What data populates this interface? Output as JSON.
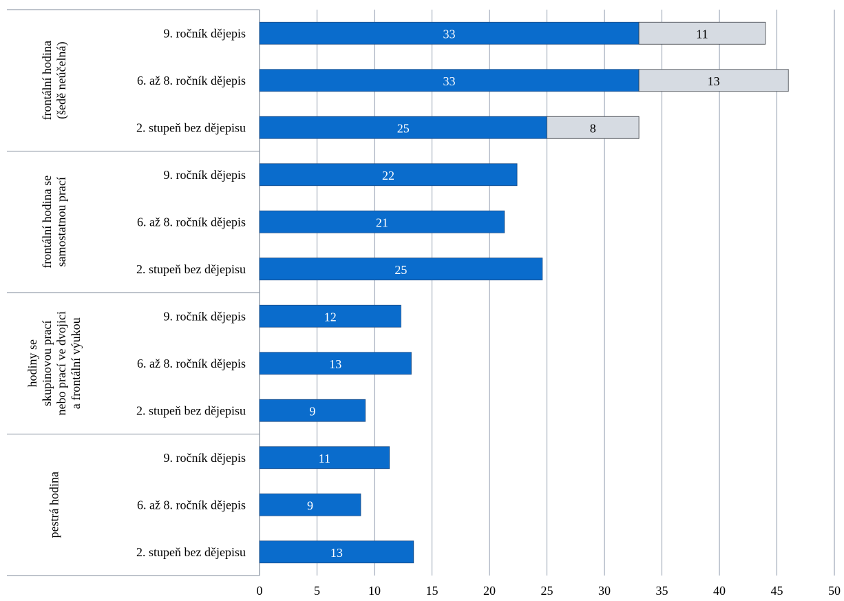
{
  "chart_data": {
    "type": "bar",
    "orientation": "horizontal",
    "stacked": true,
    "xlim": [
      0,
      50
    ],
    "x_ticks": [
      "0",
      "5",
      "10",
      "15",
      "20",
      "25",
      "30",
      "35",
      "40",
      "45",
      "50"
    ],
    "grid": "vertical",
    "legend": "none",
    "colors": {
      "primary": "#0a6ccc",
      "secondary": "#d6dbe2",
      "grid": "#8a96a8",
      "frame": "#7f8a99"
    },
    "groups": [
      {
        "label_lines": [
          "frontální hodina",
          "(šedě neúčelná)"
        ],
        "categories": [
          "9. ročník dějepis",
          "6. až 8. ročník dějepis",
          "2. stupeň bez dějepisu"
        ],
        "primary": [
          33,
          33,
          25
        ],
        "secondary": [
          11,
          13,
          8
        ],
        "primary_labels": [
          "33",
          "33",
          "25"
        ],
        "secondary_labels": [
          "11",
          "13",
          "8"
        ]
      },
      {
        "label_lines": [
          "frontální hodina se",
          "samostatnou prací"
        ],
        "categories": [
          "9. ročník dějepis",
          "6. až 8. ročník dějepis",
          "2. stupeň bez dějepisu"
        ],
        "primary": [
          22.4,
          21.3,
          24.6
        ],
        "primary_labels": [
          "22",
          "21",
          "25"
        ]
      },
      {
        "label_lines": [
          "hodiny se",
          "skupinovou prací",
          "nebo prací ve dvojici",
          "a frontální výukou"
        ],
        "categories": [
          "9. ročník dějepis",
          "6. až 8. ročník dějepis",
          "2. stupeň bez dějepisu"
        ],
        "primary": [
          12.3,
          13.2,
          9.2
        ],
        "primary_labels": [
          "12",
          "13",
          "9"
        ]
      },
      {
        "label_lines": [
          "pestrá hodina"
        ],
        "categories": [
          "9. ročník dějepis",
          "6. až 8. ročník dějepis",
          "2. stupeň bez dějepisu"
        ],
        "primary": [
          11.3,
          8.8,
          13.4
        ],
        "primary_labels": [
          "11",
          "9",
          "13"
        ]
      }
    ]
  }
}
